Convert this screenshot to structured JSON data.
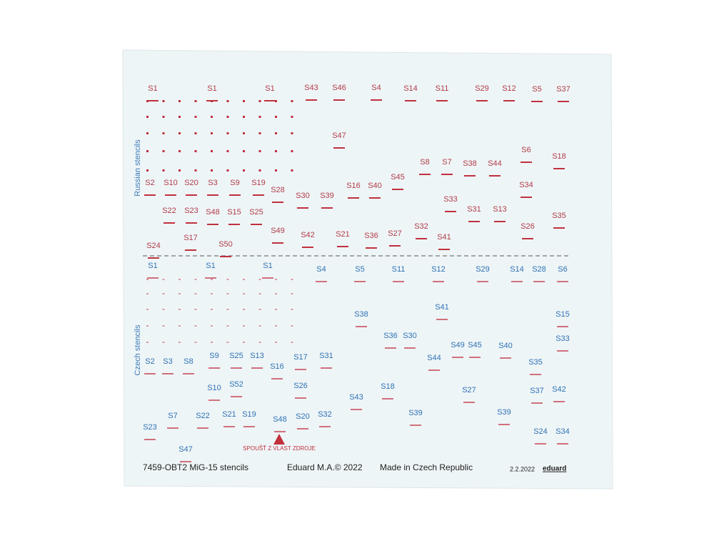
{
  "russian_stencils": {
    "title": "Russian stencils",
    "labels": [
      "S1",
      "S1",
      "S1",
      "S43",
      "S46",
      "S4",
      "S14",
      "S11",
      "S29",
      "S12",
      "S5",
      "S37",
      "S47",
      "S6",
      "S18",
      "S8",
      "S7",
      "S38",
      "S44",
      "S45",
      "S34",
      "S2",
      "S10",
      "S20",
      "S3",
      "S9",
      "S19",
      "S28",
      "S30",
      "S39",
      "S16",
      "S40",
      "S33",
      "S22",
      "S23",
      "S48",
      "S15",
      "S25",
      "S31",
      "S13",
      "S35",
      "S49",
      "S42",
      "S21",
      "S36",
      "S27",
      "S32",
      "S41",
      "S26",
      "S17",
      "S24",
      "S50"
    ]
  },
  "czech_stencils": {
    "title": "Czech stencils",
    "labels": [
      "S1",
      "S1",
      "S1",
      "S4",
      "S5",
      "S11",
      "S12",
      "S29",
      "S14",
      "S28",
      "S6",
      "S38",
      "S41",
      "S15",
      "S36",
      "S30",
      "S33",
      "S49",
      "S45",
      "S40",
      "S2",
      "S3",
      "S8",
      "S9",
      "S25",
      "S13",
      "S17",
      "S31",
      "S44",
      "S35",
      "S16",
      "S10",
      "S52",
      "S26",
      "S18",
      "S27",
      "S37",
      "S42",
      "S43",
      "S7",
      "S22",
      "S21",
      "S19",
      "S48",
      "S20",
      "S32",
      "S39",
      "S39",
      "S23",
      "S24",
      "S34",
      "S47"
    ],
    "warning": "SPOUŠŤ Z VLAST ZDROJE"
  },
  "footer": {
    "product": "7459-OBT2 MiG-15 stencils",
    "copyright": "Eduard M.A.© 2022",
    "origin": "Made in Czech Republic",
    "date": "2.2.2022",
    "brand": "eduard"
  }
}
